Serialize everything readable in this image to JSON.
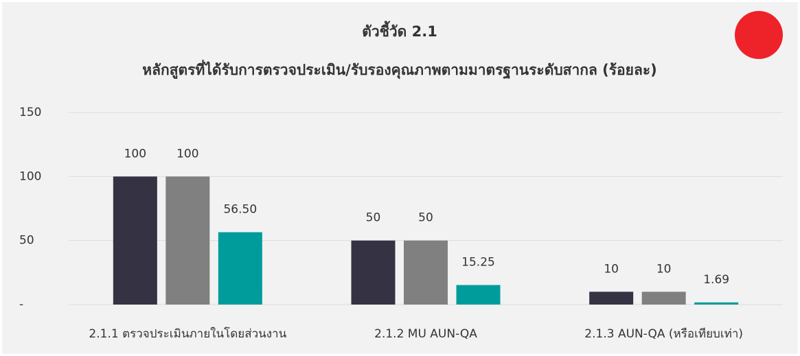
{
  "chart_data": {
    "type": "bar",
    "title": "ตัวชี้วัด 2.1",
    "subtitle": "หลักสูตรที่ได้รับการตรวจประเมิน/รับรองคุณภาพตามมาตรฐานระดับสากล (ร้อยละ)",
    "categories": [
      "2.1.1 ตรวจประเมินภายในโดยส่วนงาน",
      "2.1.2 MU AUN-QA",
      "2.1.3 AUN-QA (หรือเทียบเท่า)"
    ],
    "series": [
      {
        "color": "#353244",
        "values": [
          100,
          50,
          10
        ]
      },
      {
        "color": "#808080",
        "values": [
          100,
          50,
          10
        ]
      },
      {
        "color": "#009c9c",
        "values": [
          56.5,
          15.25,
          1.69
        ],
        "value_labels": [
          "56.50",
          "15.25",
          "1.69"
        ]
      }
    ],
    "ylim": [
      0,
      150
    ],
    "yticks": [
      {
        "value": 0,
        "label": "-"
      },
      50,
      100,
      150
    ],
    "grid": true
  }
}
